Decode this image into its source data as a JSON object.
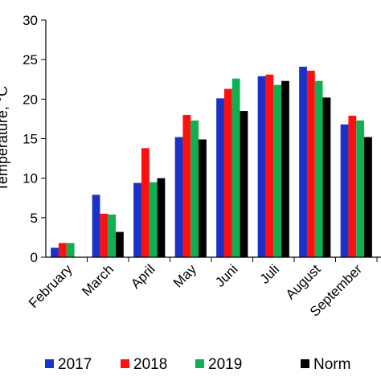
{
  "chart_data": {
    "type": "bar",
    "categories": [
      "February",
      "March",
      "April",
      "May",
      "Juni",
      "Juli",
      "August",
      "September"
    ],
    "series": [
      {
        "name": "2017",
        "color": "#1a32c8",
        "values": [
          1.2,
          7.9,
          9.4,
          15.2,
          20.1,
          22.9,
          24.1,
          16.8
        ]
      },
      {
        "name": "2018",
        "color": "#ff1010",
        "values": [
          1.8,
          5.5,
          13.8,
          18.0,
          21.3,
          23.1,
          23.6,
          17.9
        ]
      },
      {
        "name": "2019",
        "color": "#10b050",
        "values": [
          1.8,
          5.4,
          9.5,
          17.3,
          22.6,
          21.8,
          22.3,
          17.3
        ]
      },
      {
        "name": "Norm",
        "color": "#000000",
        "values": [
          null,
          3.2,
          10.0,
          14.9,
          18.5,
          22.3,
          20.2,
          15.2
        ]
      }
    ],
    "ylabel": "Temperature, °C",
    "ylim": [
      0,
      30
    ],
    "yticks": [
      0,
      5,
      10,
      15,
      20,
      25,
      30
    ],
    "grid": false,
    "legend": "bottom"
  }
}
